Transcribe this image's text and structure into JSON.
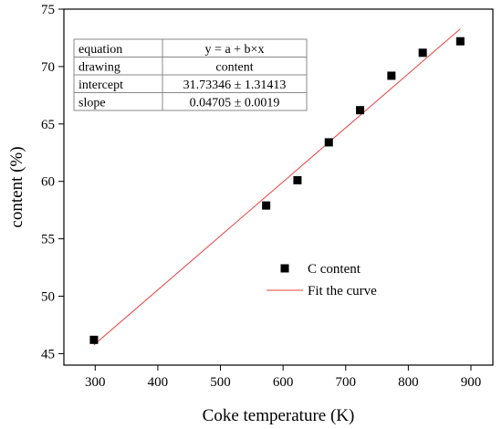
{
  "chart_data": {
    "type": "scatter",
    "title": "",
    "xlabel": "Coke temperature (K)",
    "ylabel": "content (%)",
    "xlim": [
      250,
      935
    ],
    "ylim": [
      44,
      75
    ],
    "xticks": [
      300,
      400,
      500,
      600,
      700,
      800,
      900
    ],
    "yticks": [
      45,
      50,
      55,
      60,
      65,
      70,
      75
    ],
    "grid": false,
    "series": [
      {
        "name": "C content",
        "marker": "square",
        "color": "#000000",
        "x": [
          298,
          573,
          623,
          673,
          723,
          773,
          823,
          883
        ],
        "y": [
          46.2,
          57.9,
          60.1,
          63.4,
          66.2,
          69.2,
          71.2,
          72.2
        ]
      }
    ],
    "fit": {
      "name": "Fit the curve",
      "color": "#e8413f",
      "intercept_value": 31.73346,
      "slope_value": 0.04705,
      "x_range": [
        298,
        883
      ]
    },
    "fit_table": [
      [
        "equation",
        "y = a + b×x"
      ],
      [
        "drawing",
        "content"
      ],
      [
        "intercept",
        "31.73346 ± 1.31413"
      ],
      [
        "slope",
        "0.04705 ± 0.0019"
      ]
    ],
    "legend": {
      "position": "lower-right",
      "entries": [
        "C content",
        "Fit the curve"
      ]
    }
  }
}
